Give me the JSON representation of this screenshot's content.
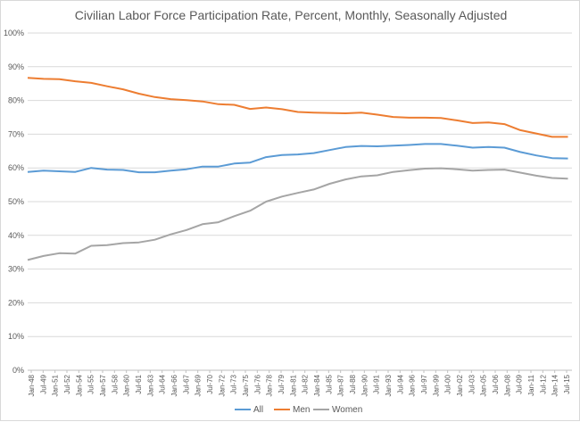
{
  "chart_data": {
    "type": "line",
    "title": "Civilian Labor Force Participation Rate, Percent, Monthly, Seasonally Adjusted",
    "xlabel": "",
    "ylabel": "",
    "ylim": [
      0,
      100
    ],
    "y_ticks": [
      "0%",
      "10%",
      "20%",
      "30%",
      "40%",
      "50%",
      "60%",
      "70%",
      "80%",
      "90%",
      "100%"
    ],
    "x_tick_labels": [
      "Jan-48",
      "Jul-49",
      "Jan-51",
      "Jul-52",
      "Jan-54",
      "Jul-55",
      "Jan-57",
      "Jul-58",
      "Jan-60",
      "Jul-61",
      "Jan-63",
      "Jul-64",
      "Jan-66",
      "Jul-67",
      "Jan-69",
      "Jul-70",
      "Jan-72",
      "Jul-73",
      "Jan-75",
      "Jul-76",
      "Jan-78",
      "Jul-79",
      "Jan-81",
      "Jul-82",
      "Jan-84",
      "Jul-85",
      "Jan-87",
      "Jul-88",
      "Jan-90",
      "Jul-91",
      "Jan-93",
      "Jul-94",
      "Jan-96",
      "Jul-97",
      "Jan-99",
      "Jul-00",
      "Jan-02",
      "Jul-03",
      "Jan-05",
      "Jul-06",
      "Jan-08",
      "Jul-09",
      "Jan-11",
      "Jul-12",
      "Jan-14",
      "Jul-15"
    ],
    "x": [
      1948,
      1950,
      1952,
      1954,
      1956,
      1958,
      1960,
      1962,
      1964,
      1966,
      1968,
      1970,
      1972,
      1974,
      1976,
      1978,
      1980,
      1982,
      1984,
      1986,
      1988,
      1990,
      1992,
      1994,
      1996,
      1998,
      2000,
      2002,
      2004,
      2006,
      2008,
      2010,
      2012,
      2014,
      2016
    ],
    "x_range": [
      1948,
      2016.5
    ],
    "grid": true,
    "legend_position": "bottom",
    "series": [
      {
        "name": "All",
        "color": "#5b9bd5",
        "values": [
          58.8,
          59.2,
          59.0,
          58.8,
          60.0,
          59.5,
          59.4,
          58.7,
          58.7,
          59.2,
          59.6,
          60.4,
          60.4,
          61.3,
          61.6,
          63.2,
          63.8,
          64.0,
          64.4,
          65.3,
          66.2,
          66.5,
          66.4,
          66.6,
          66.8,
          67.1,
          67.1,
          66.6,
          66.0,
          66.2,
          66.0,
          64.7,
          63.7,
          62.9,
          62.8
        ]
      },
      {
        "name": "Men",
        "color": "#ed7d31",
        "values": [
          86.7,
          86.4,
          86.3,
          85.7,
          85.2,
          84.2,
          83.3,
          82.0,
          81.0,
          80.4,
          80.1,
          79.7,
          78.9,
          78.7,
          77.5,
          77.9,
          77.4,
          76.6,
          76.4,
          76.3,
          76.2,
          76.4,
          75.8,
          75.1,
          74.9,
          74.9,
          74.8,
          74.1,
          73.3,
          73.5,
          73.0,
          71.2,
          70.2,
          69.2,
          69.2
        ]
      },
      {
        "name": "Women",
        "color": "#a5a5a5",
        "values": [
          32.7,
          33.9,
          34.7,
          34.6,
          36.9,
          37.1,
          37.7,
          37.9,
          38.7,
          40.3,
          41.6,
          43.3,
          43.9,
          45.7,
          47.3,
          50.0,
          51.5,
          52.6,
          53.6,
          55.3,
          56.6,
          57.5,
          57.8,
          58.8,
          59.3,
          59.8,
          59.9,
          59.6,
          59.2,
          59.4,
          59.5,
          58.6,
          57.7,
          57.0,
          56.8
        ]
      }
    ]
  }
}
